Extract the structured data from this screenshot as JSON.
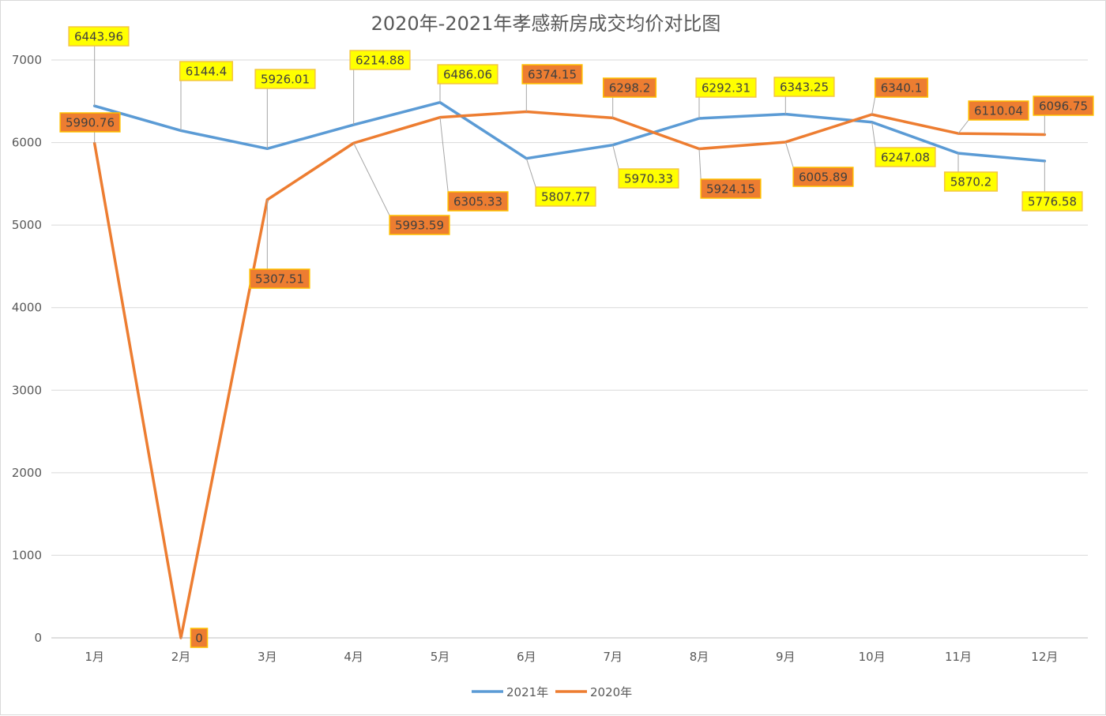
{
  "chart_data": {
    "type": "line",
    "title": "2020年-2021年孝感新房成交均价对比图",
    "categories": [
      "1月",
      "2月",
      "3月",
      "4月",
      "5月",
      "6月",
      "7月",
      "8月",
      "9月",
      "10月",
      "11月",
      "12月"
    ],
    "yticks": [
      "0",
      "1000",
      "2000",
      "3000",
      "4000",
      "5000",
      "6000",
      "7000"
    ],
    "ylim": [
      0,
      7000
    ],
    "xlabel": "",
    "ylabel": "",
    "legend_position": "bottom",
    "series": [
      {
        "name": "2021年",
        "color": "#5b9bd5",
        "label_fill": "#ffff00",
        "label_border": "#f4c542",
        "values": [
          6443.96,
          6144.4,
          5926.01,
          6214.88,
          6486.06,
          5807.77,
          5970.33,
          6292.31,
          6343.25,
          6247.08,
          5870.2,
          5776.58
        ],
        "labels": [
          "6443.96",
          "6144.4",
          "5926.01",
          "6214.88",
          "6486.06",
          "5807.77",
          "5970.33",
          "6292.31",
          "6343.25",
          "6247.08",
          "5870.2",
          "5776.58"
        ]
      },
      {
        "name": "2020年",
        "color": "#ed7d31",
        "label_fill": "#ed7d31",
        "label_border": "#ffc000",
        "values": [
          5990.76,
          0,
          5307.51,
          5993.59,
          6305.33,
          6374.15,
          6298.2,
          5924.15,
          6005.89,
          6340.1,
          6110.04,
          6096.75
        ],
        "labels": [
          "5990.76",
          "0",
          "5307.51",
          "5993.59",
          "6305.33",
          "6374.15",
          "6298.2",
          "5924.15",
          "6005.89",
          "6340.1",
          "6110.04",
          "6096.75"
        ]
      }
    ]
  }
}
